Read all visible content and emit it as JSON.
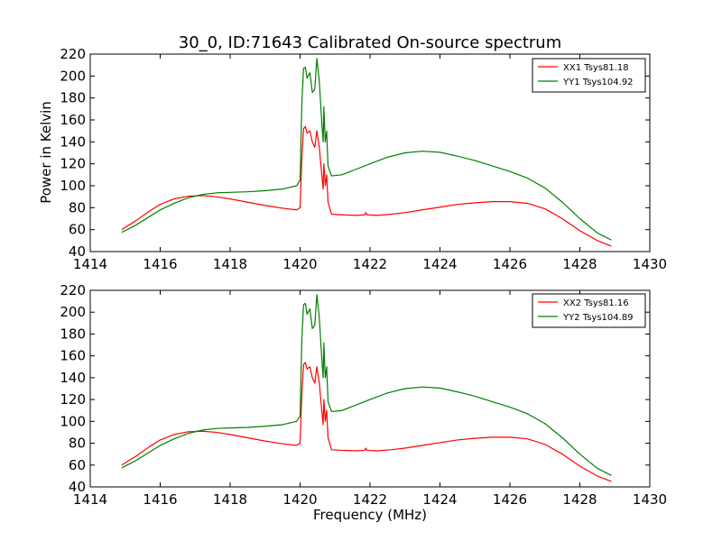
{
  "chart_data": [
    {
      "type": "line",
      "title": "30_0, ID:71643 Calibrated On-source spectrum",
      "xlabel": "",
      "ylabel": "Power in Kelvin",
      "xlim": [
        1414,
        1430
      ],
      "ylim": [
        40,
        220
      ],
      "xticks": [
        1414,
        1416,
        1418,
        1420,
        1422,
        1424,
        1426,
        1428,
        1430
      ],
      "yticks": [
        40,
        60,
        80,
        100,
        120,
        140,
        160,
        180,
        200,
        220
      ],
      "legend_position": "upper right",
      "grid": false,
      "series": [
        {
          "name": "XX1 Tsys81.18",
          "color": "#ff0000",
          "points": [
            [
              1414.9,
              60
            ],
            [
              1415.3,
              68
            ],
            [
              1415.7,
              77
            ],
            [
              1416.0,
              83
            ],
            [
              1416.4,
              88
            ],
            [
              1416.8,
              90.5
            ],
            [
              1417.2,
              91
            ],
            [
              1417.6,
              90
            ],
            [
              1418.0,
              88
            ],
            [
              1418.5,
              85
            ],
            [
              1419.0,
              82
            ],
            [
              1419.5,
              79.5
            ],
            [
              1419.9,
              78
            ],
            [
              1420.0,
              80
            ],
            [
              1420.05,
              125
            ],
            [
              1420.1,
              152
            ],
            [
              1420.15,
              154
            ],
            [
              1420.2,
              148
            ],
            [
              1420.28,
              150
            ],
            [
              1420.35,
              140
            ],
            [
              1420.42,
              135
            ],
            [
              1420.48,
              150
            ],
            [
              1420.55,
              135
            ],
            [
              1420.62,
              110
            ],
            [
              1420.66,
              97
            ],
            [
              1420.68,
              120
            ],
            [
              1420.72,
              100
            ],
            [
              1420.76,
              110
            ],
            [
              1420.8,
              85
            ],
            [
              1420.9,
              74
            ],
            [
              1421.2,
              73.5
            ],
            [
              1421.6,
              73
            ],
            [
              1421.85,
              73.5
            ],
            [
              1421.88,
              75.5
            ],
            [
              1421.92,
              73.5
            ],
            [
              1422.2,
              73
            ],
            [
              1422.6,
              74
            ],
            [
              1423.0,
              75.5
            ],
            [
              1423.5,
              78
            ],
            [
              1424.0,
              80.5
            ],
            [
              1424.5,
              83
            ],
            [
              1425.0,
              84.5
            ],
            [
              1425.5,
              85.5
            ],
            [
              1426.0,
              85.5
            ],
            [
              1426.5,
              84
            ],
            [
              1427.0,
              79
            ],
            [
              1427.5,
              70
            ],
            [
              1428.0,
              59
            ],
            [
              1428.5,
              50
            ],
            [
              1428.9,
              45
            ]
          ]
        },
        {
          "name": "YY1 Tsys104.92",
          "color": "#008000",
          "points": [
            [
              1414.9,
              57.5
            ],
            [
              1415.3,
              64
            ],
            [
              1415.7,
              72
            ],
            [
              1416.0,
              78
            ],
            [
              1416.4,
              84
            ],
            [
              1416.8,
              89
            ],
            [
              1417.2,
              92
            ],
            [
              1417.6,
              93.5
            ],
            [
              1418.0,
              94
            ],
            [
              1418.5,
              94.5
            ],
            [
              1419.0,
              95.5
            ],
            [
              1419.5,
              97
            ],
            [
              1419.9,
              100
            ],
            [
              1420.0,
              105
            ],
            [
              1420.05,
              175
            ],
            [
              1420.1,
              207
            ],
            [
              1420.15,
              208
            ],
            [
              1420.2,
              198
            ],
            [
              1420.28,
              203
            ],
            [
              1420.35,
              185
            ],
            [
              1420.42,
              188
            ],
            [
              1420.48,
              216
            ],
            [
              1420.55,
              195
            ],
            [
              1420.62,
              158
            ],
            [
              1420.66,
              140
            ],
            [
              1420.68,
              172
            ],
            [
              1420.72,
              140
            ],
            [
              1420.76,
              150
            ],
            [
              1420.8,
              118
            ],
            [
              1420.9,
              109
            ],
            [
              1421.2,
              110
            ],
            [
              1421.6,
              115
            ],
            [
              1422.0,
              120
            ],
            [
              1422.5,
              126
            ],
            [
              1423.0,
              130
            ],
            [
              1423.5,
              131.5
            ],
            [
              1424.0,
              130.5
            ],
            [
              1424.5,
              127
            ],
            [
              1425.0,
              123
            ],
            [
              1425.5,
              118
            ],
            [
              1426.0,
              113
            ],
            [
              1426.5,
              107
            ],
            [
              1427.0,
              98
            ],
            [
              1427.5,
              85
            ],
            [
              1428.0,
              70
            ],
            [
              1428.5,
              57
            ],
            [
              1428.9,
              50.5
            ]
          ]
        }
      ]
    },
    {
      "type": "line",
      "title": "",
      "xlabel": "Frequency (MHz)",
      "ylabel": "",
      "xlim": [
        1414,
        1430
      ],
      "ylim": [
        40,
        220
      ],
      "xticks": [
        1414,
        1416,
        1418,
        1420,
        1422,
        1424,
        1426,
        1428,
        1430
      ],
      "yticks": [
        40,
        60,
        80,
        100,
        120,
        140,
        160,
        180,
        200,
        220
      ],
      "legend_position": "upper right",
      "grid": false,
      "series": [
        {
          "name": "XX2 Tsys81.16",
          "color": "#ff0000",
          "points": [
            [
              1414.9,
              60
            ],
            [
              1415.3,
              68
            ],
            [
              1415.7,
              77
            ],
            [
              1416.0,
              83
            ],
            [
              1416.4,
              88
            ],
            [
              1416.8,
              90.5
            ],
            [
              1417.2,
              91
            ],
            [
              1417.6,
              90
            ],
            [
              1418.0,
              88
            ],
            [
              1418.5,
              85
            ],
            [
              1419.0,
              82
            ],
            [
              1419.5,
              79.5
            ],
            [
              1419.9,
              78
            ],
            [
              1420.0,
              80
            ],
            [
              1420.05,
              125
            ],
            [
              1420.1,
              152
            ],
            [
              1420.15,
              154
            ],
            [
              1420.2,
              148
            ],
            [
              1420.28,
              150
            ],
            [
              1420.35,
              140
            ],
            [
              1420.42,
              135
            ],
            [
              1420.48,
              150
            ],
            [
              1420.55,
              135
            ],
            [
              1420.62,
              110
            ],
            [
              1420.66,
              97
            ],
            [
              1420.68,
              120
            ],
            [
              1420.72,
              100
            ],
            [
              1420.76,
              110
            ],
            [
              1420.8,
              85
            ],
            [
              1420.9,
              74
            ],
            [
              1421.2,
              73.5
            ],
            [
              1421.6,
              73
            ],
            [
              1421.85,
              73.5
            ],
            [
              1421.88,
              75.5
            ],
            [
              1421.92,
              73.5
            ],
            [
              1422.2,
              73
            ],
            [
              1422.6,
              74
            ],
            [
              1423.0,
              75.5
            ],
            [
              1423.5,
              78
            ],
            [
              1424.0,
              80.5
            ],
            [
              1424.5,
              83
            ],
            [
              1425.0,
              84.5
            ],
            [
              1425.5,
              85.5
            ],
            [
              1426.0,
              85.5
            ],
            [
              1426.5,
              84
            ],
            [
              1427.0,
              79
            ],
            [
              1427.5,
              70
            ],
            [
              1428.0,
              59
            ],
            [
              1428.5,
              50
            ],
            [
              1428.9,
              45
            ]
          ]
        },
        {
          "name": "YY2 Tsys104.89",
          "color": "#008000",
          "points": [
            [
              1414.9,
              57.5
            ],
            [
              1415.3,
              64
            ],
            [
              1415.7,
              72
            ],
            [
              1416.0,
              78
            ],
            [
              1416.4,
              84
            ],
            [
              1416.8,
              89
            ],
            [
              1417.2,
              92
            ],
            [
              1417.6,
              93.5
            ],
            [
              1418.0,
              94
            ],
            [
              1418.5,
              94.5
            ],
            [
              1419.0,
              95.5
            ],
            [
              1419.5,
              97
            ],
            [
              1419.9,
              100
            ],
            [
              1420.0,
              105
            ],
            [
              1420.05,
              175
            ],
            [
              1420.1,
              207
            ],
            [
              1420.15,
              208
            ],
            [
              1420.2,
              198
            ],
            [
              1420.28,
              203
            ],
            [
              1420.35,
              185
            ],
            [
              1420.42,
              188
            ],
            [
              1420.48,
              216
            ],
            [
              1420.55,
              195
            ],
            [
              1420.62,
              158
            ],
            [
              1420.66,
              140
            ],
            [
              1420.68,
              172
            ],
            [
              1420.72,
              140
            ],
            [
              1420.76,
              150
            ],
            [
              1420.8,
              118
            ],
            [
              1420.9,
              109
            ],
            [
              1421.2,
              110
            ],
            [
              1421.6,
              115
            ],
            [
              1422.0,
              120
            ],
            [
              1422.5,
              126
            ],
            [
              1423.0,
              130
            ],
            [
              1423.5,
              131.5
            ],
            [
              1424.0,
              130.5
            ],
            [
              1424.5,
              127
            ],
            [
              1425.0,
              123
            ],
            [
              1425.5,
              118
            ],
            [
              1426.0,
              113
            ],
            [
              1426.5,
              107
            ],
            [
              1427.0,
              98
            ],
            [
              1427.5,
              85
            ],
            [
              1428.0,
              70
            ],
            [
              1428.5,
              57
            ],
            [
              1428.9,
              50.5
            ]
          ]
        }
      ]
    }
  ]
}
